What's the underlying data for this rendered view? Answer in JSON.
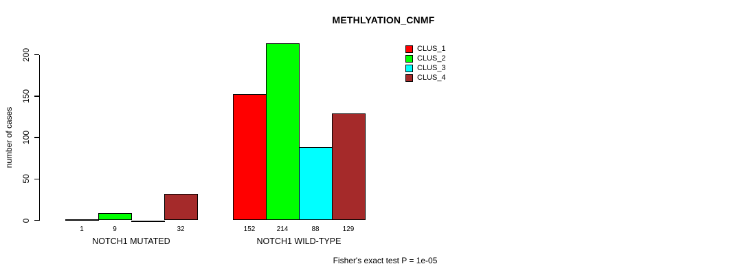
{
  "chart_data": {
    "type": "bar",
    "title": "METHLYATION_CNMF",
    "ylabel": "number of cases",
    "xlabel": "",
    "ylim": [
      0,
      200
    ],
    "yticks": [
      0,
      50,
      100,
      150,
      200
    ],
    "grid": false,
    "legend_position": "top-right",
    "series": [
      {
        "name": "CLUS_1",
        "color": "#FF0000",
        "values": [
          1,
          152
        ]
      },
      {
        "name": "CLUS_2",
        "color": "#00FF00",
        "values": [
          9,
          214
        ]
      },
      {
        "name": "CLUS_3",
        "color": "#00FFFF",
        "values": [
          0,
          88
        ]
      },
      {
        "name": "CLUS_4",
        "color": "#A52A2A",
        "values": [
          32,
          129
        ]
      }
    ],
    "groups": [
      {
        "label": "NOTCH1 MUTATED",
        "values": [
          1,
          9,
          0,
          32
        ],
        "bar_labels": [
          "1",
          "9",
          "",
          "32"
        ]
      },
      {
        "label": "NOTCH1 WILD-TYPE",
        "values": [
          152,
          214,
          88,
          129
        ],
        "bar_labels": [
          "152",
          "214",
          "88",
          "129"
        ]
      }
    ],
    "annotation": "Fisher's exact test P = 1e-05"
  },
  "colors": {
    "background": "#ffffff",
    "axis": "#000000",
    "text": "#000000",
    "clus_1": "#FF0000",
    "clus_2": "#00FF00",
    "clus_3": "#00FFFF",
    "clus_4": "#A52A2A"
  }
}
